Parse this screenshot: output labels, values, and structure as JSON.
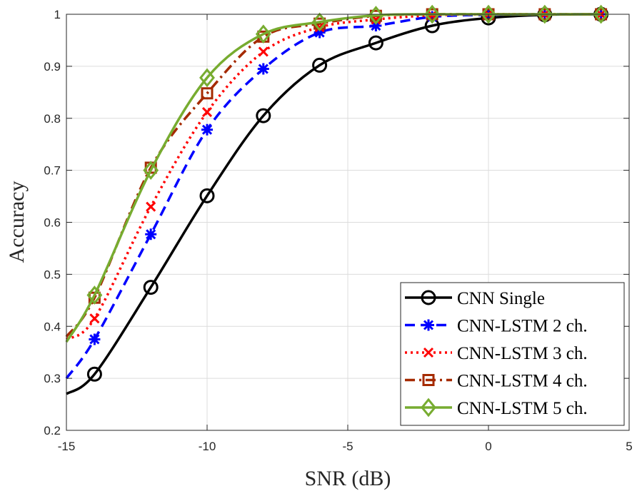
{
  "chart_data": {
    "type": "line",
    "title": "",
    "xlabel": "SNR (dB)",
    "ylabel": "Accuracy",
    "xlim": [
      -15,
      5
    ],
    "ylim": [
      0.2,
      1
    ],
    "grid": true,
    "legend_position": "bottom-right",
    "xticks": [
      -15,
      -10,
      -5,
      0,
      5
    ],
    "xtick_labels": [
      "-15",
      "-10",
      "-5",
      "0",
      "5"
    ],
    "yticks": [
      0.2,
      0.3,
      0.4,
      0.5,
      0.6,
      0.7,
      0.8,
      0.9,
      1.0
    ],
    "ytick_labels": [
      "0.2",
      "0.3",
      "0.4",
      "0.5",
      "0.6",
      "0.7",
      "0.8",
      "0.9",
      "1"
    ],
    "x": [
      -14,
      -12,
      -10,
      -8,
      -6,
      -4,
      -2,
      0,
      2,
      4
    ],
    "series": [
      {
        "name": "CNN Single",
        "color": "#000000",
        "dash": "solid",
        "marker": "circle",
        "values": [
          0.308,
          0.475,
          0.651,
          0.805,
          0.902,
          0.945,
          0.978,
          0.993,
          0.999,
          1.0
        ],
        "line_start": [
          -15,
          0.27
        ]
      },
      {
        "name": "CNN-LSTM 2 ch.",
        "color": "#0000FF",
        "dash": "dash",
        "marker": "asterisk",
        "values": [
          0.375,
          0.577,
          0.778,
          0.895,
          0.965,
          0.978,
          0.995,
          0.999,
          1.0,
          1.0
        ],
        "line_start": [
          -15,
          0.3
        ]
      },
      {
        "name": "CNN-LSTM 3 ch.",
        "color": "#FF0000",
        "dash": "dot",
        "marker": "x",
        "values": [
          0.415,
          0.63,
          0.812,
          0.928,
          0.975,
          0.99,
          0.998,
          1.0,
          1.0,
          1.0
        ],
        "line_start": [
          -15,
          0.375
        ]
      },
      {
        "name": "CNN-LSTM 4 ch.",
        "color": "#A52A00",
        "dash": "dashdot",
        "marker": "square",
        "values": [
          0.455,
          0.705,
          0.848,
          0.957,
          0.982,
          0.997,
          1.0,
          1.0,
          1.0,
          1.0
        ],
        "line_start": [
          -15,
          0.38
        ]
      },
      {
        "name": "CNN-LSTM 5 ch.",
        "color": "#77AC30",
        "dash": "solid",
        "marker": "diamond",
        "values": [
          0.46,
          0.7,
          0.878,
          0.962,
          0.985,
          0.998,
          1.0,
          1.0,
          1.0,
          1.0
        ],
        "line_start": [
          -15,
          0.37
        ]
      }
    ]
  }
}
